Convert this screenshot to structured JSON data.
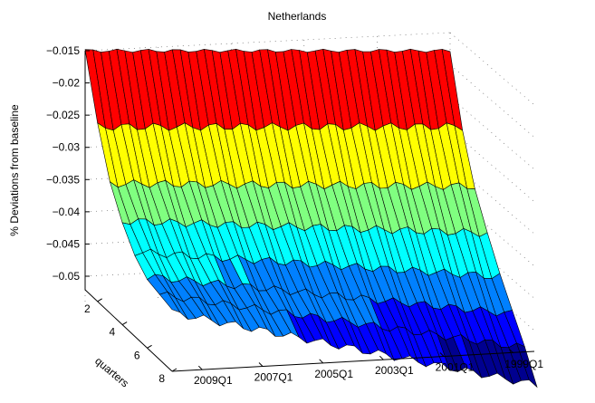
{
  "chart_data": {
    "type": "surface",
    "title": "Netherlands",
    "zlabel": "% Deviations from baseline",
    "ylabel": "quarters",
    "xlabel": "",
    "z_ticks": [
      -0.015,
      -0.02,
      -0.025,
      -0.03,
      -0.035,
      -0.04,
      -0.045,
      -0.05
    ],
    "z_tick_labels": [
      "−0.015",
      "−0.02",
      "−0.025",
      "−0.03",
      "−0.035",
      "−0.04",
      "−0.045",
      "−0.05"
    ],
    "zlim": [
      -0.055,
      -0.014
    ],
    "quarter_ticks": [
      "2",
      "4",
      "6",
      "8"
    ],
    "quarters_range": [
      1,
      8
    ],
    "date_ticks": [
      "2009Q1",
      "2007Q1",
      "2005Q1",
      "2003Q1",
      "2001Q1",
      "1999Q1"
    ],
    "date_range": [
      "1999Q1",
      "2010Q4"
    ],
    "grid": true,
    "colormap": [
      "#00008f",
      "#0000ff",
      "#0080ff",
      "#00ffff",
      "#80ff80",
      "#ffff00",
      "#ff8000",
      "#ff0000",
      "#800000"
    ],
    "edge_color": "#000000",
    "responses": [
      {
        "quarter": 1,
        "start": -0.015,
        "end": -0.015
      },
      {
        "quarter": 2,
        "start": -0.025,
        "end": -0.025
      },
      {
        "quarter": 3,
        "start": -0.032,
        "end": -0.0325
      },
      {
        "quarter": 4,
        "start": -0.036,
        "end": -0.038
      },
      {
        "quarter": 5,
        "start": -0.039,
        "end": -0.043
      },
      {
        "quarter": 6,
        "start": -0.041,
        "end": -0.047
      },
      {
        "quarter": 7,
        "start": -0.042,
        "end": -0.0505
      },
      {
        "quarter": 8,
        "start": -0.043,
        "end": -0.0545
      }
    ]
  }
}
